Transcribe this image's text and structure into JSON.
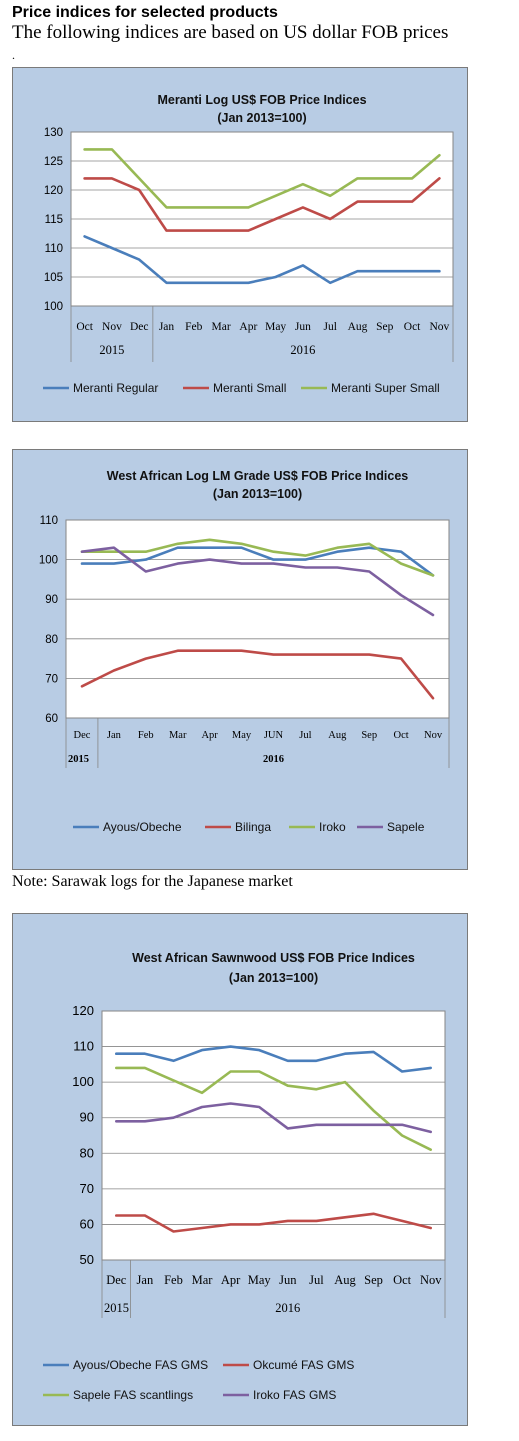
{
  "header": {
    "title": "Price indices for selected products",
    "subtitle": "The following indices are based on US dollar FOB prices",
    "dot": "."
  },
  "note": "Note: Sarawak logs for the Japanese market",
  "chart_data": [
    {
      "type": "line",
      "title": "Meranti Log US$ FOB Price Indices",
      "subtitle": "(Jan 2013=100)",
      "categories": [
        "Oct",
        "Nov",
        "Dec",
        "Jan",
        "Feb",
        "Mar",
        "Apr",
        "May",
        "Jun",
        "Jul",
        "Aug",
        "Sep",
        "Oct",
        "Nov"
      ],
      "year_groups": [
        {
          "label": "2015",
          "count": 3
        },
        {
          "label": "2016",
          "count": 11
        }
      ],
      "ylim": [
        100,
        130
      ],
      "yticks": [
        100,
        105,
        110,
        115,
        120,
        125,
        130
      ],
      "grid": true,
      "legend": "bottom",
      "series": [
        {
          "name": "Meranti Regular",
          "color": "#4a7ebb",
          "values": [
            112,
            110,
            108,
            104,
            104,
            104,
            104,
            105,
            107,
            104,
            106,
            106,
            106,
            106
          ]
        },
        {
          "name": "Meranti Small",
          "color": "#be4b48",
          "values": [
            122,
            122,
            120,
            113,
            113,
            113,
            113,
            115,
            117,
            115,
            118,
            118,
            118,
            122
          ]
        },
        {
          "name": "Meranti Super Small",
          "color": "#98b954",
          "values": [
            127,
            127,
            122,
            117,
            117,
            117,
            117,
            119,
            121,
            119,
            122,
            122,
            122,
            126
          ]
        }
      ]
    },
    {
      "type": "line",
      "title": "West African Log LM Grade US$ FOB Price Indices",
      "subtitle": "(Jan 2013=100)",
      "categories": [
        "Dec",
        "Jan",
        "Feb",
        "Mar",
        "Apr",
        "May",
        "JUN",
        "Jul",
        "Aug",
        "Sep",
        "Oct",
        "Nov"
      ],
      "year_groups": [
        {
          "label": "2015",
          "count": 1
        },
        {
          "label": "2016",
          "count": 11
        }
      ],
      "ylim": [
        60,
        110
      ],
      "yticks": [
        60,
        70,
        80,
        90,
        100,
        110
      ],
      "grid": true,
      "legend": "bottom",
      "series": [
        {
          "name": "Ayous/Obeche",
          "color": "#4a7ebb",
          "values": [
            99,
            99,
            100,
            103,
            103,
            103,
            100,
            100,
            102,
            103,
            102,
            96
          ]
        },
        {
          "name": "Bilinga",
          "color": "#be4b48",
          "values": [
            68,
            72,
            75,
            77,
            77,
            77,
            76,
            76,
            76,
            76,
            75,
            65
          ]
        },
        {
          "name": "Iroko",
          "color": "#98b954",
          "values": [
            102,
            102,
            102,
            104,
            105,
            104,
            102,
            101,
            103,
            104,
            99,
            96
          ]
        },
        {
          "name": "Sapele",
          "color": "#7d60a0",
          "values": [
            102,
            103,
            97,
            99,
            100,
            99,
            99,
            98,
            98,
            97,
            91,
            86
          ]
        }
      ]
    },
    {
      "type": "line",
      "title": "West African Sawnwood US$ FOB Price Indices",
      "subtitle": "(Jan 2013=100)",
      "categories": [
        "Dec",
        "Jan",
        "Feb",
        "Mar",
        "Apr",
        "May",
        "Jun",
        "Jul",
        "Aug",
        "Sep",
        "Oct",
        "Nov"
      ],
      "year_groups": [
        {
          "label": "2015",
          "count": 1
        },
        {
          "label": "2016",
          "count": 11
        }
      ],
      "ylim": [
        50,
        120
      ],
      "yticks": [
        50,
        60,
        70,
        80,
        90,
        100,
        110,
        120
      ],
      "grid": true,
      "legend": "bottom",
      "series": [
        {
          "name": "Ayous/Obeche  FAS GMS",
          "color": "#4a7ebb",
          "values": [
            108,
            108,
            106,
            109,
            110,
            109,
            106,
            106,
            108,
            108.5,
            103,
            104
          ]
        },
        {
          "name": "Okcumé  FAS GMS",
          "color": "#be4b48",
          "values": [
            62.5,
            62.5,
            58,
            59,
            60,
            60,
            61,
            61,
            62,
            63,
            61,
            59
          ]
        },
        {
          "name": "Sapele FAS scantlings",
          "color": "#98b954",
          "values": [
            104,
            104,
            100.5,
            97,
            103,
            103,
            99,
            98,
            100,
            92,
            85,
            81
          ]
        },
        {
          "name": "Iroko FAS GMS",
          "color": "#7d60a0",
          "values": [
            89,
            89,
            90,
            93,
            94,
            93,
            87,
            88,
            88,
            88,
            88,
            86
          ]
        }
      ]
    }
  ]
}
